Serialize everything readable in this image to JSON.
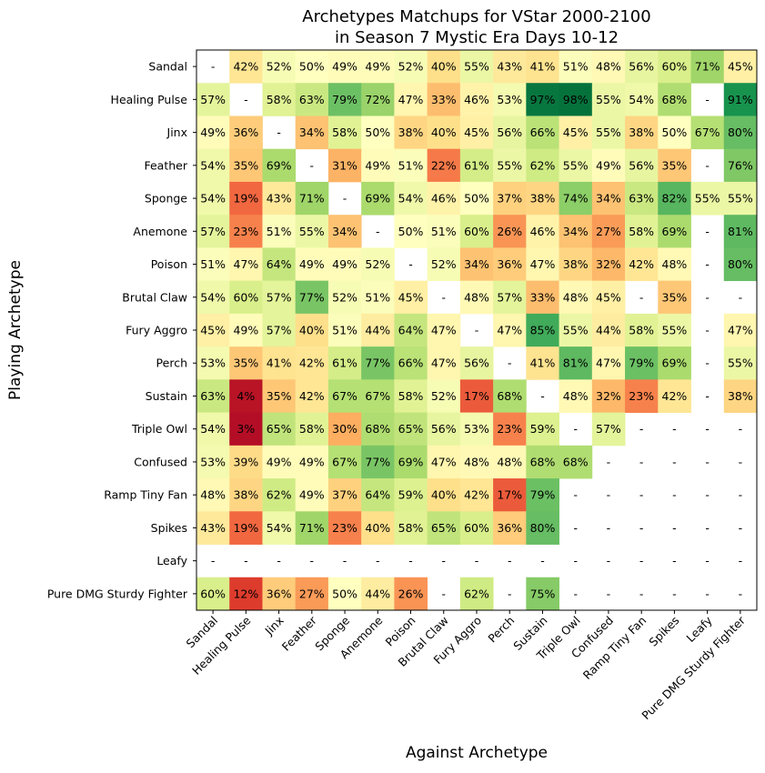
{
  "chart_data": {
    "type": "heatmap",
    "title_lines": [
      "Archetypes Matchups for VStar 2000-2100",
      "in Season 7 Mystic Era Days 10-12"
    ],
    "xlabel": "Against Archetype",
    "ylabel": "Playing Archetype",
    "color_scale": "red-yellow-green",
    "value_range": [
      0,
      100
    ],
    "x_categories": [
      "Sandal",
      "Healing Pulse",
      "Jinx",
      "Feather",
      "Sponge",
      "Anemone",
      "Poison",
      "Brutal Claw",
      "Fury Aggro",
      "Perch",
      "Sustain",
      "Triple Owl",
      "Confused",
      "Ramp Tiny Fan",
      "Spikes",
      "Leafy",
      "Pure DMG Sturdy Fighter"
    ],
    "y_categories": [
      "Sandal",
      "Healing Pulse",
      "Jinx",
      "Feather",
      "Sponge",
      "Anemone",
      "Poison",
      "Brutal Claw",
      "Fury Aggro",
      "Perch",
      "Sustain",
      "Triple Owl",
      "Confused",
      "Ramp Tiny Fan",
      "Spikes",
      "Leafy",
      "Pure DMG Sturdy Fighter"
    ],
    "values": [
      [
        null,
        42,
        52,
        50,
        49,
        49,
        52,
        40,
        55,
        43,
        41,
        51,
        48,
        56,
        60,
        71,
        45
      ],
      [
        57,
        null,
        58,
        63,
        79,
        72,
        47,
        33,
        46,
        53,
        97,
        98,
        55,
        54,
        68,
        null,
        91
      ],
      [
        49,
        36,
        null,
        34,
        58,
        50,
        38,
        40,
        45,
        56,
        66,
        45,
        55,
        38,
        50,
        67,
        80
      ],
      [
        54,
        35,
        69,
        null,
        31,
        49,
        51,
        22,
        61,
        55,
        62,
        55,
        49,
        56,
        35,
        null,
        76
      ],
      [
        54,
        19,
        43,
        71,
        null,
        69,
        54,
        46,
        50,
        37,
        38,
        74,
        34,
        63,
        82,
        55,
        55
      ],
      [
        57,
        23,
        51,
        55,
        34,
        null,
        50,
        51,
        60,
        26,
        46,
        34,
        27,
        58,
        69,
        null,
        81
      ],
      [
        51,
        47,
        64,
        49,
        49,
        52,
        null,
        52,
        34,
        36,
        47,
        38,
        32,
        42,
        48,
        null,
        80
      ],
      [
        54,
        60,
        57,
        77,
        52,
        51,
        45,
        null,
        48,
        57,
        33,
        48,
        45,
        null,
        35,
        null,
        null
      ],
      [
        45,
        49,
        57,
        40,
        51,
        44,
        64,
        47,
        null,
        47,
        85,
        55,
        44,
        58,
        55,
        null,
        47
      ],
      [
        53,
        35,
        41,
        42,
        61,
        77,
        66,
        47,
        56,
        null,
        41,
        81,
        47,
        79,
        69,
        null,
        55
      ],
      [
        63,
        4,
        35,
        42,
        67,
        67,
        58,
        52,
        17,
        68,
        null,
        48,
        32,
        23,
        42,
        null,
        38
      ],
      [
        54,
        3,
        65,
        58,
        30,
        68,
        65,
        56,
        53,
        23,
        59,
        null,
        57,
        null,
        null,
        null,
        null
      ],
      [
        53,
        39,
        49,
        49,
        67,
        77,
        69,
        47,
        48,
        48,
        68,
        68,
        null,
        null,
        null,
        null,
        null
      ],
      [
        48,
        38,
        62,
        49,
        37,
        64,
        59,
        40,
        42,
        17,
        79,
        null,
        null,
        null,
        null,
        null,
        null
      ],
      [
        43,
        19,
        54,
        71,
        23,
        40,
        58,
        65,
        60,
        36,
        80,
        null,
        null,
        null,
        null,
        null,
        null
      ],
      [
        null,
        null,
        null,
        null,
        null,
        null,
        null,
        null,
        null,
        null,
        null,
        null,
        null,
        null,
        null,
        null,
        null
      ],
      [
        60,
        12,
        36,
        27,
        50,
        44,
        26,
        null,
        62,
        null,
        75,
        null,
        null,
        null,
        null,
        null,
        null
      ]
    ],
    "missing_label": "-",
    "value_suffix": "%"
  }
}
